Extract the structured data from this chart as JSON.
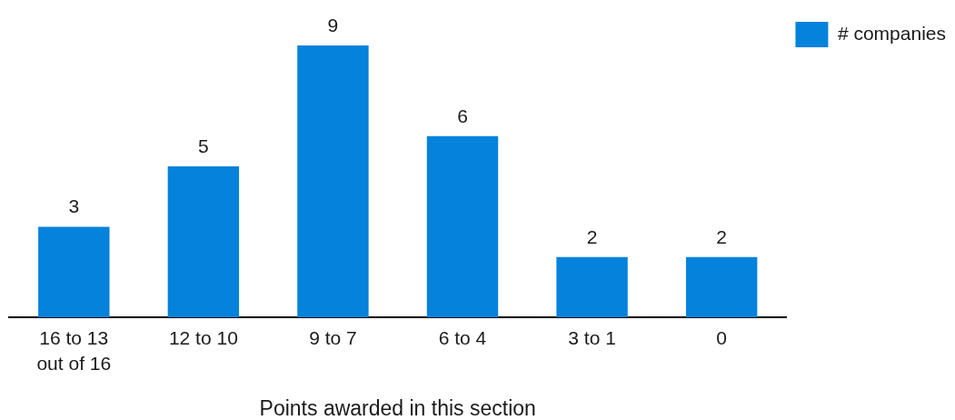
{
  "chart_data": {
    "type": "bar",
    "xlabel": "Points awarded in this section",
    "categories": [
      "16 to 13 out of 16",
      "12 to 10",
      "9 to 7",
      "6 to 4",
      "3 to 1",
      "0"
    ],
    "series": [
      {
        "name": "# companies",
        "color": "#0582db",
        "values": [
          3,
          5,
          9,
          6,
          2,
          2
        ]
      }
    ],
    "data_labels": true,
    "legend": "top right",
    "tick_labels": "x"
  }
}
